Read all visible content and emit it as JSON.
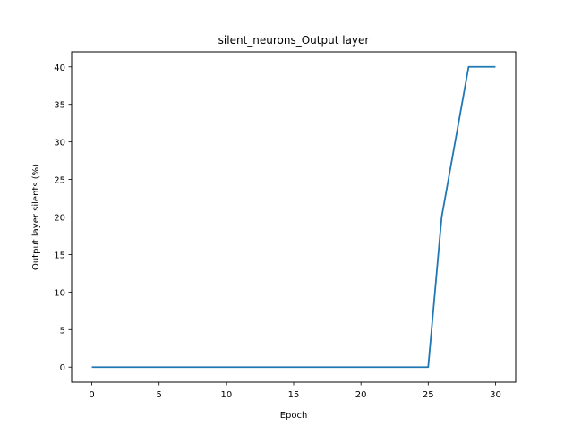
{
  "chart_data": {
    "type": "line",
    "title": "silent_neurons_Output layer",
    "xlabel": "Epoch",
    "ylabel": "Output layer silents (%)",
    "xlim": [
      -1.5,
      31.5
    ],
    "ylim": [
      -2,
      42
    ],
    "xticks": [
      0,
      5,
      10,
      15,
      20,
      25,
      30
    ],
    "yticks": [
      0,
      5,
      10,
      15,
      20,
      25,
      30,
      35,
      40
    ],
    "grid": false,
    "series": [
      {
        "color": "#1f77b4",
        "x": [
          0,
          1,
          2,
          3,
          4,
          5,
          6,
          7,
          8,
          9,
          10,
          11,
          12,
          13,
          14,
          15,
          16,
          17,
          18,
          19,
          20,
          21,
          22,
          23,
          24,
          25,
          26,
          27,
          28,
          29,
          30
        ],
        "y": [
          0,
          0,
          0,
          0,
          0,
          0,
          0,
          0,
          0,
          0,
          0,
          0,
          0,
          0,
          0,
          0,
          0,
          0,
          0,
          0,
          0,
          0,
          0,
          0,
          0,
          0,
          20,
          30,
          40,
          40,
          40
        ]
      }
    ]
  }
}
